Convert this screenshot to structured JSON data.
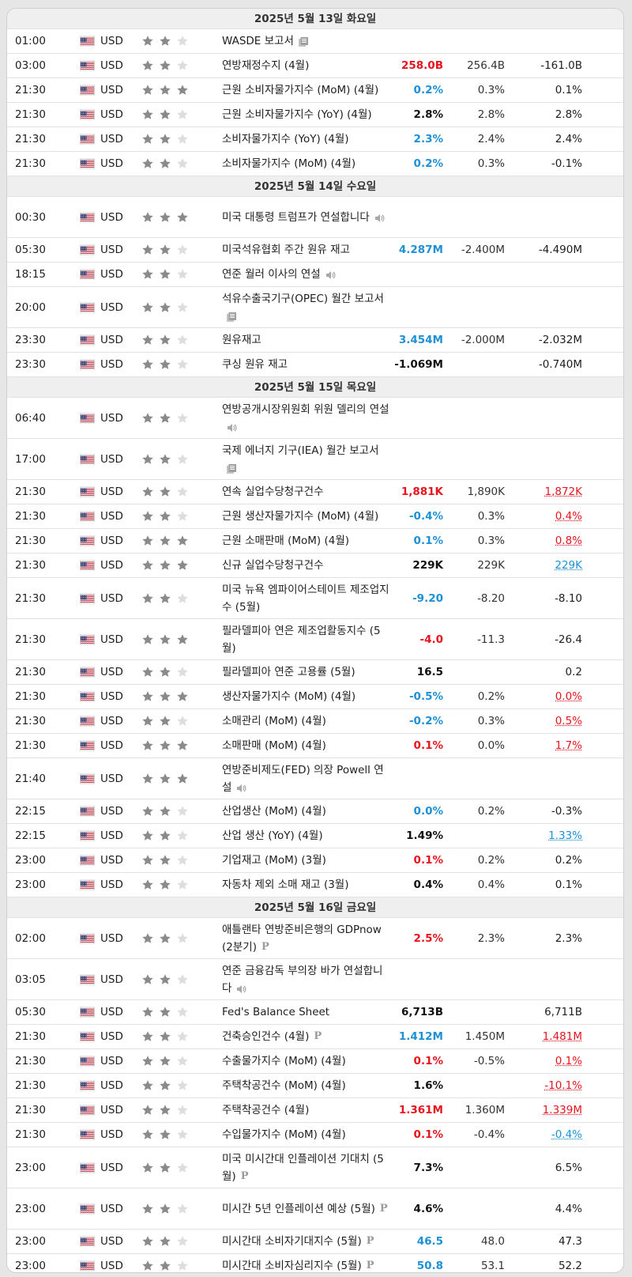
{
  "colors": {
    "red": "#e8141d",
    "blue": "#1e90d6",
    "star_on": "#8a8a8a",
    "star_off": "#dddddd"
  },
  "rows": [
    {
      "type": "day",
      "label": "2025년 5월 13일 화요일"
    },
    {
      "time": "01:00",
      "cur": "USD",
      "stars": 2,
      "event": "WASDE 보고서",
      "icon": "document-icon",
      "actual": "",
      "actual_style": "",
      "forecast": "",
      "previous": "",
      "prev_style": ""
    },
    {
      "time": "03:00",
      "cur": "USD",
      "stars": 2,
      "event": "연방재정수지 (4월)",
      "icon": "",
      "actual": "258.0B",
      "actual_style": "red",
      "forecast": "256.4B",
      "previous": "-161.0B",
      "prev_style": ""
    },
    {
      "time": "21:30",
      "cur": "USD",
      "stars": 3,
      "event": "근원 소비자물가지수 (MoM) (4월)",
      "icon": "",
      "actual": "0.2%",
      "actual_style": "blue",
      "forecast": "0.3%",
      "previous": "0.1%",
      "prev_style": ""
    },
    {
      "time": "21:30",
      "cur": "USD",
      "stars": 2,
      "event": "근원 소비자물가지수 (YoY) (4월)",
      "icon": "",
      "actual": "2.8%",
      "actual_style": "black",
      "forecast": "2.8%",
      "previous": "2.8%",
      "prev_style": ""
    },
    {
      "time": "21:30",
      "cur": "USD",
      "stars": 2,
      "event": "소비자물가지수 (YoY) (4월)",
      "icon": "",
      "actual": "2.3%",
      "actual_style": "blue",
      "forecast": "2.4%",
      "previous": "2.4%",
      "prev_style": ""
    },
    {
      "time": "21:30",
      "cur": "USD",
      "stars": 2,
      "event": "소비자물가지수 (MoM) (4월)",
      "icon": "",
      "actual": "0.2%",
      "actual_style": "blue",
      "forecast": "0.3%",
      "previous": "-0.1%",
      "prev_style": ""
    },
    {
      "type": "day",
      "label": "2025년 5월 14일 수요일"
    },
    {
      "time": "00:30",
      "cur": "USD",
      "stars": 3,
      "event": "미국 대통령 트럼프가 연설합니다",
      "icon": "speaker-icon",
      "actual": "",
      "actual_style": "",
      "forecast": "",
      "previous": "",
      "prev_style": "",
      "tall": true
    },
    {
      "time": "05:30",
      "cur": "USD",
      "stars": 2,
      "event": "미국석유협회 주간 원유 재고",
      "icon": "",
      "actual": "4.287M",
      "actual_style": "blue",
      "forecast": "-2.400M",
      "previous": "-4.490M",
      "prev_style": ""
    },
    {
      "time": "18:15",
      "cur": "USD",
      "stars": 2,
      "event": "연준 월러 이사의 연설",
      "icon": "speaker-icon",
      "actual": "",
      "actual_style": "",
      "forecast": "",
      "previous": "",
      "prev_style": ""
    },
    {
      "time": "20:00",
      "cur": "USD",
      "stars": 2,
      "event": "석유수출국기구(OPEC) 월간 보고서",
      "icon": "document-icon",
      "actual": "",
      "actual_style": "",
      "forecast": "",
      "previous": "",
      "prev_style": "",
      "tall": true
    },
    {
      "time": "23:30",
      "cur": "USD",
      "stars": 2,
      "event": "원유재고",
      "icon": "",
      "actual": "3.454M",
      "actual_style": "blue",
      "forecast": "-2.000M",
      "previous": "-2.032M",
      "prev_style": ""
    },
    {
      "time": "23:30",
      "cur": "USD",
      "stars": 2,
      "event": "쿠싱 원유 재고",
      "icon": "",
      "actual": "-1.069M",
      "actual_style": "black",
      "forecast": "",
      "previous": "-0.740M",
      "prev_style": ""
    },
    {
      "type": "day",
      "label": "2025년 5월 15일 목요일"
    },
    {
      "time": "06:40",
      "cur": "USD",
      "stars": 2,
      "event": "연방공개시장위원회 위원 델리의 연설",
      "icon": "speaker-icon",
      "actual": "",
      "actual_style": "",
      "forecast": "",
      "previous": "",
      "prev_style": "",
      "tall": true
    },
    {
      "time": "17:00",
      "cur": "USD",
      "stars": 2,
      "event": "국제 에너지 기구(IEA) 월간 보고서",
      "icon": "document-icon",
      "actual": "",
      "actual_style": "",
      "forecast": "",
      "previous": "",
      "prev_style": "",
      "tall": true
    },
    {
      "time": "21:30",
      "cur": "USD",
      "stars": 2,
      "event": "연속 실업수당청구건수",
      "icon": "",
      "actual": "1,881K",
      "actual_style": "red",
      "forecast": "1,890K",
      "previous": "1,872K",
      "prev_style": "ul-red"
    },
    {
      "time": "21:30",
      "cur": "USD",
      "stars": 2,
      "event": "근원 생산자물가지수 (MoM) (4월)",
      "icon": "",
      "actual": "-0.4%",
      "actual_style": "blue",
      "forecast": "0.3%",
      "previous": "0.4%",
      "prev_style": "ul-red"
    },
    {
      "time": "21:30",
      "cur": "USD",
      "stars": 3,
      "event": "근원 소매판매 (MoM) (4월)",
      "icon": "",
      "actual": "0.1%",
      "actual_style": "blue",
      "forecast": "0.3%",
      "previous": "0.8%",
      "prev_style": "ul-red"
    },
    {
      "time": "21:30",
      "cur": "USD",
      "stars": 3,
      "event": "신규 실업수당청구건수",
      "icon": "",
      "actual": "229K",
      "actual_style": "black",
      "forecast": "229K",
      "previous": "229K",
      "prev_style": "ul-blue"
    },
    {
      "time": "21:30",
      "cur": "USD",
      "stars": 2,
      "event": "미국 뉴욕 엠파이어스테이트 제조업지수 (5월)",
      "icon": "",
      "actual": "-9.20",
      "actual_style": "blue",
      "forecast": "-8.20",
      "previous": "-8.10",
      "prev_style": "",
      "tall": true
    },
    {
      "time": "21:30",
      "cur": "USD",
      "stars": 3,
      "event": "필라델피아 연은 제조업활동지수 (5월)",
      "icon": "",
      "actual": "-4.0",
      "actual_style": "red",
      "forecast": "-11.3",
      "previous": "-26.4",
      "prev_style": "",
      "tall": true
    },
    {
      "time": "21:30",
      "cur": "USD",
      "stars": 2,
      "event": "필라델피아 연준 고용률 (5월)",
      "icon": "",
      "actual": "16.5",
      "actual_style": "black",
      "forecast": "",
      "previous": "0.2",
      "prev_style": ""
    },
    {
      "time": "21:30",
      "cur": "USD",
      "stars": 3,
      "event": "생산자물가지수 (MoM) (4월)",
      "icon": "",
      "actual": "-0.5%",
      "actual_style": "blue",
      "forecast": "0.2%",
      "previous": "0.0%",
      "prev_style": "ul-red"
    },
    {
      "time": "21:30",
      "cur": "USD",
      "stars": 2,
      "event": "소매관리 (MoM) (4월)",
      "icon": "",
      "actual": "-0.2%",
      "actual_style": "blue",
      "forecast": "0.3%",
      "previous": "0.5%",
      "prev_style": "ul-red"
    },
    {
      "time": "21:30",
      "cur": "USD",
      "stars": 3,
      "event": "소매판매 (MoM) (4월)",
      "icon": "",
      "actual": "0.1%",
      "actual_style": "red",
      "forecast": "0.0%",
      "previous": "1.7%",
      "prev_style": "ul-red"
    },
    {
      "time": "21:40",
      "cur": "USD",
      "stars": 3,
      "event": "연방준비제도(FED) 의장 Powell 연설",
      "icon": "speaker-icon",
      "actual": "",
      "actual_style": "",
      "forecast": "",
      "previous": "",
      "prev_style": "",
      "tall": true
    },
    {
      "time": "22:15",
      "cur": "USD",
      "stars": 2,
      "event": "산업생산 (MoM) (4월)",
      "icon": "",
      "actual": "0.0%",
      "actual_style": "blue",
      "forecast": "0.2%",
      "previous": "-0.3%",
      "prev_style": ""
    },
    {
      "time": "22:15",
      "cur": "USD",
      "stars": 2,
      "event": "산업 생산 (YoY) (4월)",
      "icon": "",
      "actual": "1.49%",
      "actual_style": "black",
      "forecast": "",
      "previous": "1.33%",
      "prev_style": "ul-blue"
    },
    {
      "time": "23:00",
      "cur": "USD",
      "stars": 2,
      "event": "기업재고 (MoM) (3월)",
      "icon": "",
      "actual": "0.1%",
      "actual_style": "red",
      "forecast": "0.2%",
      "previous": "0.2%",
      "prev_style": ""
    },
    {
      "time": "23:00",
      "cur": "USD",
      "stars": 2,
      "event": "자동차 제외 소매 재고 (3월)",
      "icon": "",
      "actual": "0.4%",
      "actual_style": "black",
      "forecast": "0.4%",
      "previous": "0.1%",
      "prev_style": ""
    },
    {
      "type": "day",
      "label": "2025년 5월 16일 금요일"
    },
    {
      "time": "02:00",
      "cur": "USD",
      "stars": 2,
      "event": "애틀랜타 연방준비은행의 GDPnow (2분기)",
      "icon": "p-icon",
      "actual": "2.5%",
      "actual_style": "red",
      "forecast": "2.3%",
      "previous": "2.3%",
      "prev_style": "",
      "tall": true
    },
    {
      "time": "03:05",
      "cur": "USD",
      "stars": 2,
      "event": "연준 금융감독 부의장 바가 연설합니다",
      "icon": "speaker-icon",
      "actual": "",
      "actual_style": "",
      "forecast": "",
      "previous": "",
      "prev_style": "",
      "tall": true
    },
    {
      "time": "05:30",
      "cur": "USD",
      "stars": 2,
      "event": "Fed's Balance Sheet",
      "icon": "",
      "actual": "6,713B",
      "actual_style": "black",
      "forecast": "",
      "previous": "6,711B",
      "prev_style": ""
    },
    {
      "time": "21:30",
      "cur": "USD",
      "stars": 2,
      "event": "건축승인건수 (4월)",
      "icon": "p-icon",
      "actual": "1.412M",
      "actual_style": "blue",
      "forecast": "1.450M",
      "previous": "1.481M",
      "prev_style": "ul-red"
    },
    {
      "time": "21:30",
      "cur": "USD",
      "stars": 2,
      "event": "수출물가지수 (MoM) (4월)",
      "icon": "",
      "actual": "0.1%",
      "actual_style": "red",
      "forecast": "-0.5%",
      "previous": "0.1%",
      "prev_style": "ul-red"
    },
    {
      "time": "21:30",
      "cur": "USD",
      "stars": 2,
      "event": "주택착공건수 (MoM) (4월)",
      "icon": "",
      "actual": "1.6%",
      "actual_style": "black",
      "forecast": "",
      "previous": "-10.1%",
      "prev_style": "ul-red"
    },
    {
      "time": "21:30",
      "cur": "USD",
      "stars": 2,
      "event": "주택착공건수 (4월)",
      "icon": "",
      "actual": "1.361M",
      "actual_style": "red",
      "forecast": "1.360M",
      "previous": "1.339M",
      "prev_style": "ul-red"
    },
    {
      "time": "21:30",
      "cur": "USD",
      "stars": 2,
      "event": "수입물가지수 (MoM) (4월)",
      "icon": "",
      "actual": "0.1%",
      "actual_style": "red",
      "forecast": "-0.4%",
      "previous": "-0.4%",
      "prev_style": "ul-blue"
    },
    {
      "time": "23:00",
      "cur": "USD",
      "stars": 2,
      "event": "미국 미시간대 인플레이션 기대치 (5월)",
      "icon": "p-icon",
      "actual": "7.3%",
      "actual_style": "black",
      "forecast": "",
      "previous": "6.5%",
      "prev_style": "",
      "tall": true
    },
    {
      "time": "23:00",
      "cur": "USD",
      "stars": 2,
      "event": "미시간 5년 인플레이션 예상 (5월)",
      "icon": "p-icon",
      "actual": "4.6%",
      "actual_style": "black",
      "forecast": "",
      "previous": "4.4%",
      "prev_style": "",
      "tall": true
    },
    {
      "time": "23:00",
      "cur": "USD",
      "stars": 2,
      "event": "미시간대 소비자기대지수 (5월)",
      "icon": "p-icon",
      "actual": "46.5",
      "actual_style": "blue",
      "forecast": "48.0",
      "previous": "47.3",
      "prev_style": ""
    },
    {
      "time": "23:00",
      "cur": "USD",
      "stars": 2,
      "event": "미시간대 소비자심리지수 (5월)",
      "icon": "p-icon",
      "actual": "50.8",
      "actual_style": "blue",
      "forecast": "53.1",
      "previous": "52.2",
      "prev_style": ""
    }
  ]
}
